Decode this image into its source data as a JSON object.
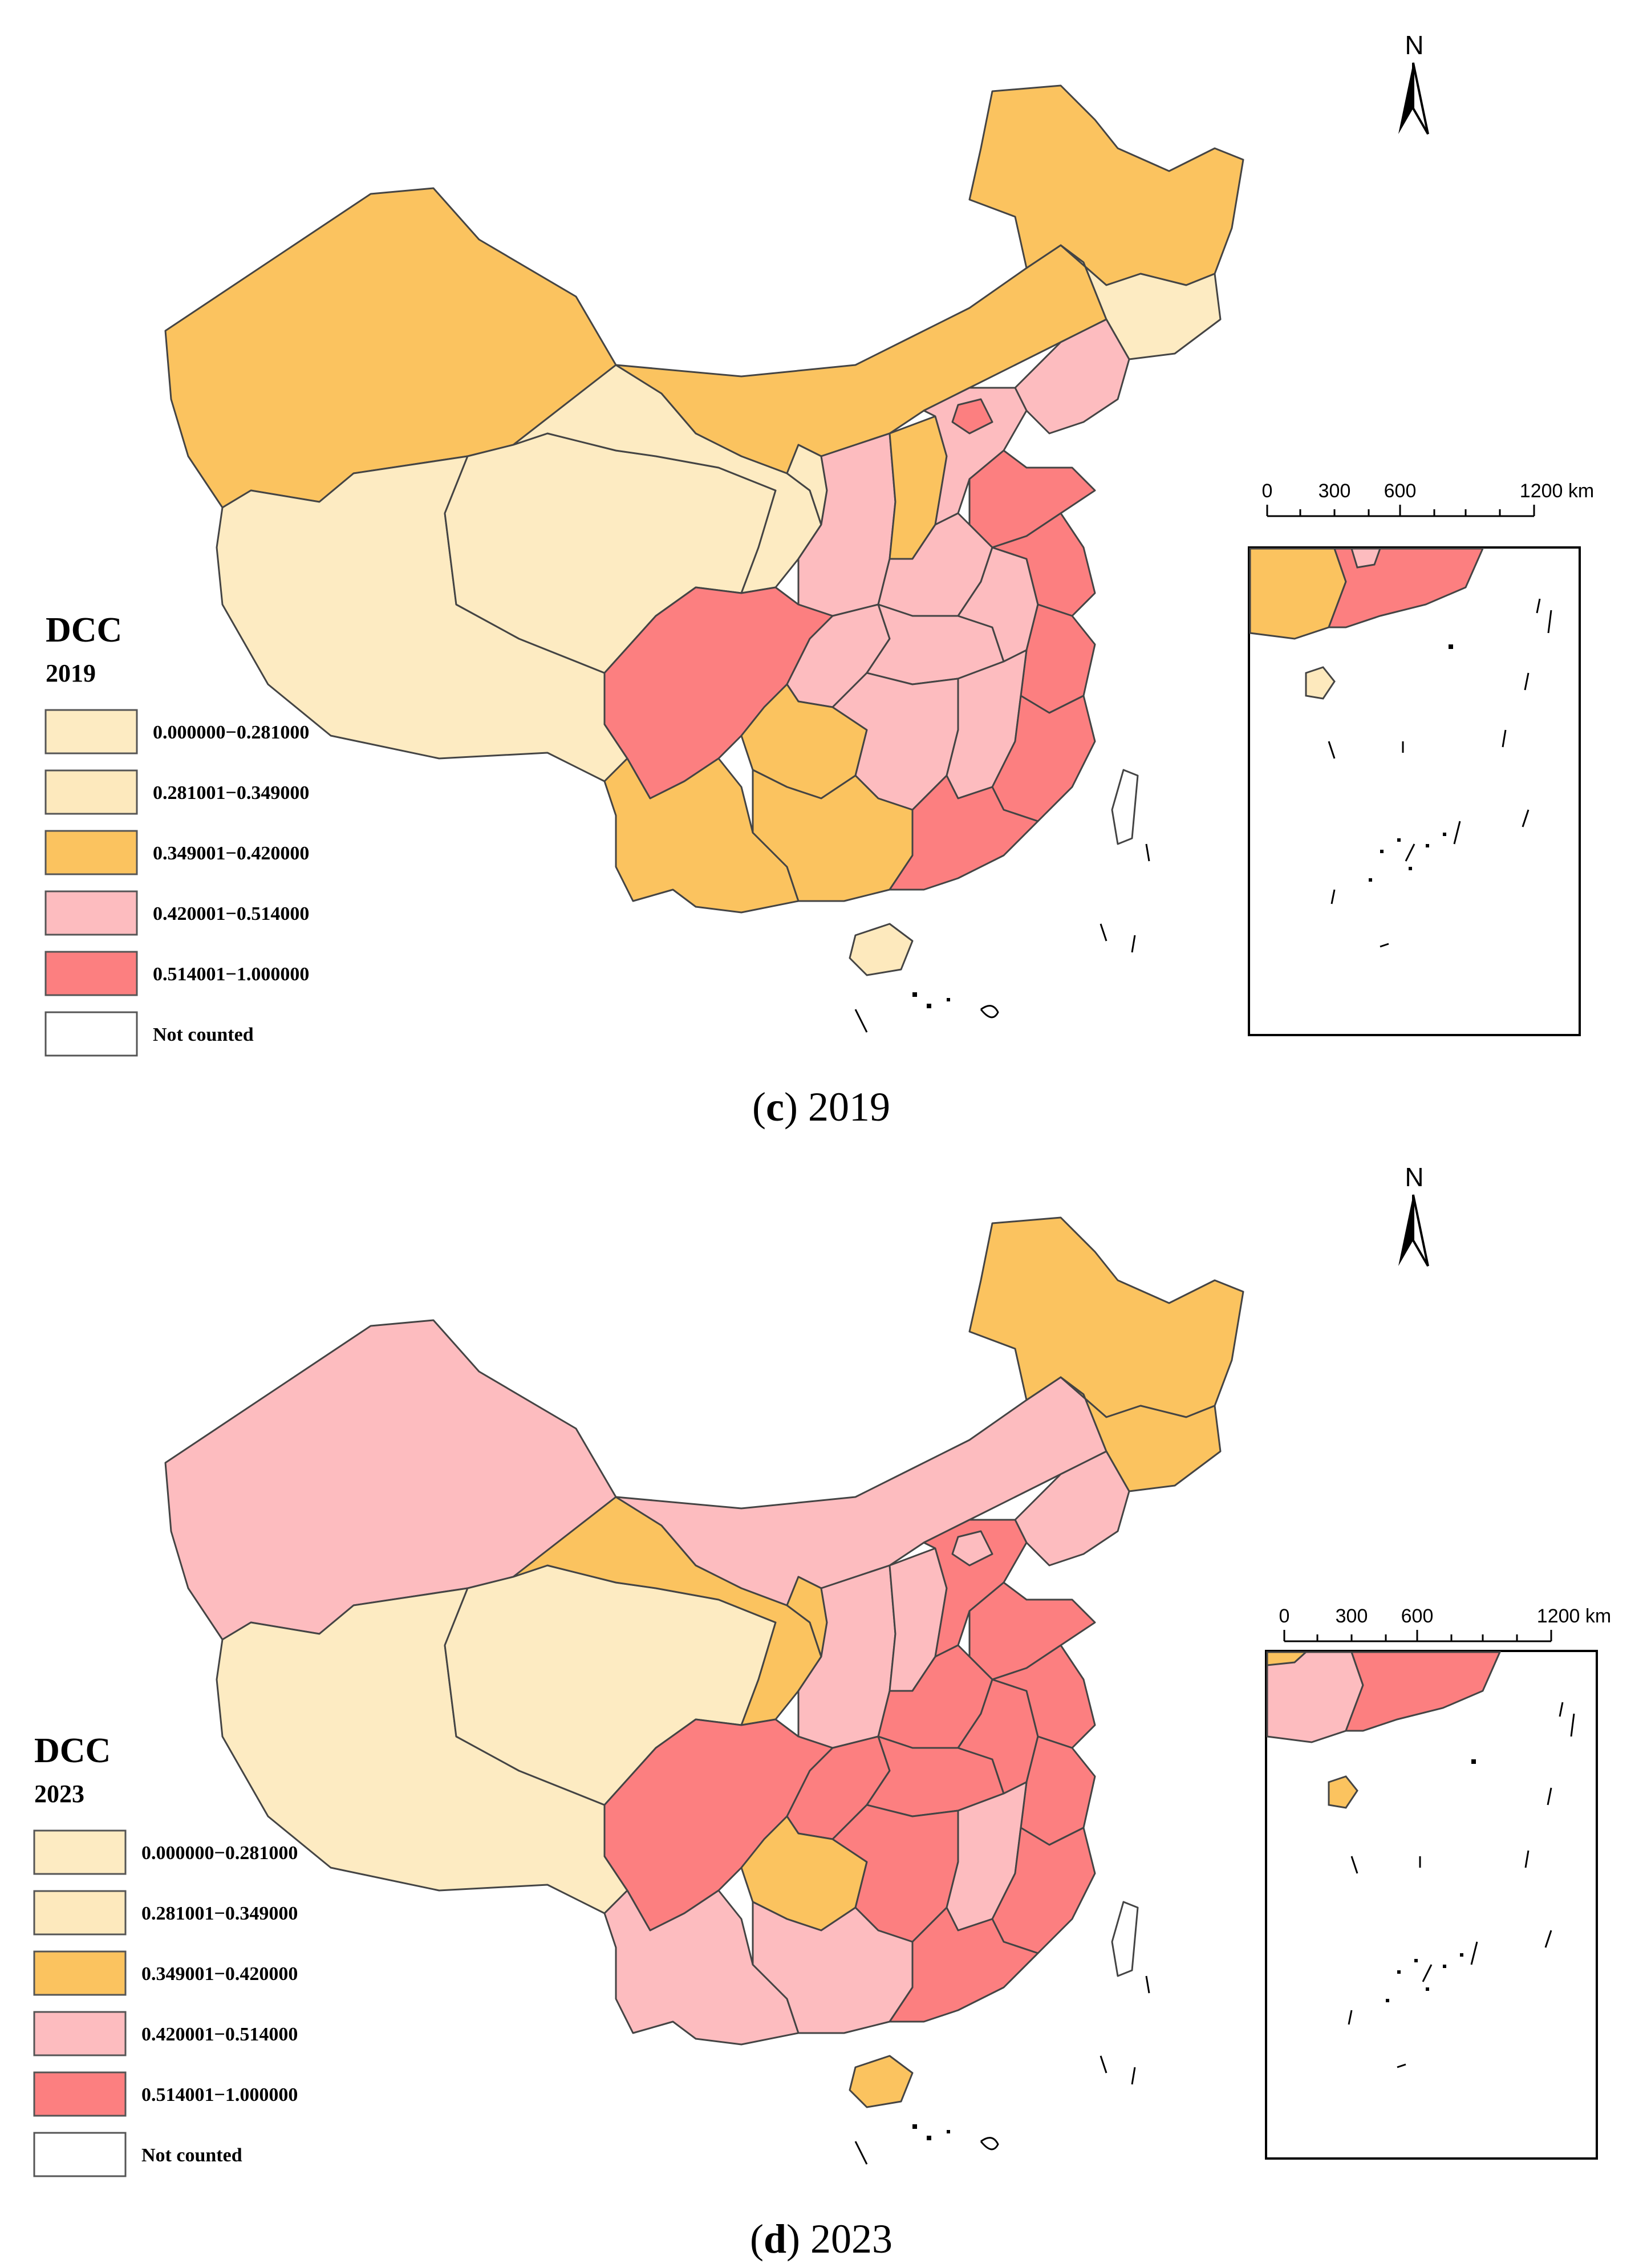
{
  "figure": {
    "north_label": "N",
    "scale": {
      "ticks": [
        "0",
        "300",
        "600"
      ],
      "end_label": "1200 km"
    },
    "legend": {
      "title": "DCC",
      "classes": [
        {
          "label": "0.000000−0.281000",
          "color": "#fdebc2"
        },
        {
          "label": "0.281001−0.349000",
          "color": "#fde9bd"
        },
        {
          "label": "0.349001−0.420000",
          "color": "#fbc35f"
        },
        {
          "label": "0.420001−0.514000",
          "color": "#fdbcbf"
        },
        {
          "label": "0.514001−1.000000",
          "color": "#fc7f80"
        },
        {
          "label": "Not counted",
          "color": "#ffffff"
        }
      ]
    }
  },
  "panels": [
    {
      "id": "c",
      "year": "2019",
      "caption_letter": "c",
      "caption_year": "2019",
      "regions": {
        "xinjiang": "#fbc35f",
        "tibet": "#fdebc2",
        "qinghai": "#fdebc2",
        "gansu": "#fdebc2",
        "inner_mongolia": "#fbc35f",
        "heilongjiang": "#fbc35f",
        "jilin": "#fdebc2",
        "liaoning": "#fdbcbf",
        "ningxia": "#fdebc2",
        "shaanxi": "#fdbcbf",
        "shanxi": "#fbc35f",
        "hebei": "#fdbcbf",
        "beijing": "#fc7f80",
        "shandong": "#fc7f80",
        "henan": "#fdbcbf",
        "sichuan": "#fc7f80",
        "chongqing": "#fdbcbf",
        "hubei": "#fdbcbf",
        "anhui": "#fdbcbf",
        "jiangsu": "#fc7f80",
        "zhejiang": "#fc7f80",
        "yunnan": "#fbc35f",
        "guizhou": "#fbc35f",
        "hunan": "#fdbcbf",
        "jiangxi": "#fdbcbf",
        "fujian": "#fc7f80",
        "guangxi": "#fbc35f",
        "guangdong": "#fc7f80",
        "hainan": "#fde9bd",
        "taiwan": "#ffffff"
      }
    },
    {
      "id": "d",
      "year": "2023",
      "caption_letter": "d",
      "caption_year": "2023",
      "regions": {
        "xinjiang": "#fdbcbf",
        "tibet": "#fdebc2",
        "qinghai": "#fdebc2",
        "gansu": "#fbc35f",
        "inner_mongolia": "#fdbcbf",
        "heilongjiang": "#fbc35f",
        "jilin": "#fbc35f",
        "liaoning": "#fdbcbf",
        "ningxia": "#fbc35f",
        "shaanxi": "#fdbcbf",
        "shanxi": "#fdbcbf",
        "hebei": "#fc7f80",
        "beijing": "#fdbcbf",
        "shandong": "#fc7f80",
        "henan": "#fc7f80",
        "sichuan": "#fc7f80",
        "chongqing": "#fc7f80",
        "hubei": "#fc7f80",
        "anhui": "#fc7f80",
        "jiangsu": "#fc7f80",
        "zhejiang": "#fc7f80",
        "yunnan": "#fdbcbf",
        "guizhou": "#fbc35f",
        "hunan": "#fc7f80",
        "jiangxi": "#fdbcbf",
        "fujian": "#fc7f80",
        "guangxi": "#fdbcbf",
        "guangdong": "#fc7f80",
        "hainan": "#fbc35f",
        "taiwan": "#ffffff"
      }
    }
  ]
}
